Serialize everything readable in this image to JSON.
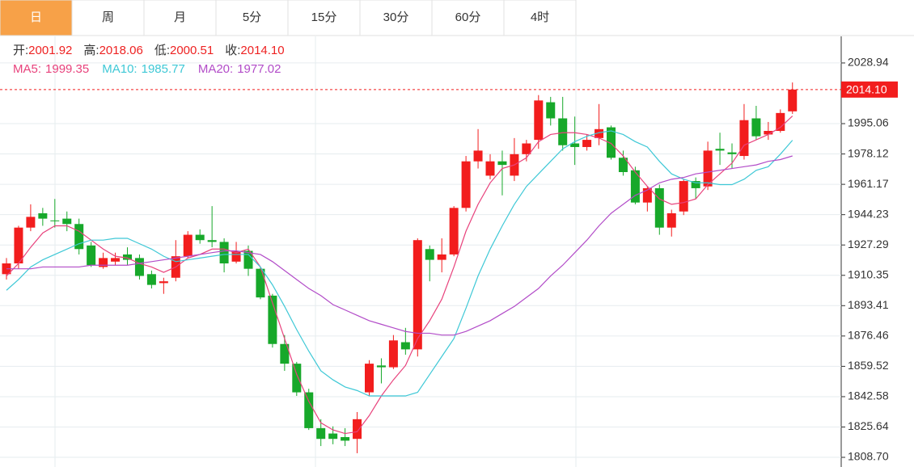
{
  "chart_data": {
    "type": "candlestick",
    "tabs": [
      "日",
      "周",
      "月",
      "5分",
      "15分",
      "30分",
      "60分",
      "4时"
    ],
    "active_tab": 0,
    "ohlc_info": [
      {
        "label": "开:",
        "value": "2001.92"
      },
      {
        "label": "高:",
        "value": "2018.06"
      },
      {
        "label": "低:",
        "value": "2000.51"
      },
      {
        "label": "收:",
        "value": "2014.10"
      }
    ],
    "up_color": "#f21d1d",
    "down_color": "#17a82a",
    "open": [
      1911,
      1917,
      1937,
      1945,
      1941,
      1942,
      1939,
      1927,
      1915,
      1918,
      1922,
      1920,
      1911,
      1906,
      1909,
      1921,
      1933,
      1930,
      1929,
      1918,
      1924,
      1914,
      1899,
      1872,
      1861,
      1845,
      1825,
      1822,
      1820,
      1819,
      1845,
      1860,
      1859,
      1873,
      1869,
      1925,
      1919,
      1922,
      1948,
      1974,
      1966,
      1974,
      1966,
      1978,
      1986,
      2007,
      1998,
      1984,
      1982,
      1987,
      1993,
      1976,
      1969,
      1951,
      1959,
      1937,
      1946,
      1963,
      1960,
      1981,
      1979,
      1977,
      1998,
      1989,
      1991,
      2001.92
    ],
    "high": [
      1920,
      1938,
      1950,
      1948,
      1953,
      1946,
      1942,
      1929,
      1923,
      1923,
      1926,
      1922,
      1913,
      1909,
      1930,
      1935,
      1936,
      1949,
      1931,
      1929,
      1927,
      1915,
      1900,
      1877,
      1862,
      1847,
      1830,
      1826,
      1825,
      1834,
      1863,
      1864,
      1877,
      1881,
      1931,
      1927,
      1931,
      1949,
      1977,
      1992,
      1978,
      1980,
      1987,
      1986,
      2011,
      2010,
      2010,
      1999,
      1989,
      2006,
      1994,
      1980,
      1971,
      1960,
      1961,
      1947,
      1964,
      1965,
      1985,
      1990,
      1984,
      2006,
      2005,
      1996,
      2003,
      2018.06
    ],
    "low": [
      1908,
      1914,
      1935,
      1938,
      1937,
      1935,
      1922,
      1915,
      1914,
      1916,
      1916,
      1908,
      1903,
      1900,
      1907,
      1920,
      1928,
      1926,
      1912,
      1917,
      1910,
      1897,
      1870,
      1857,
      1843,
      1824,
      1815,
      1816,
      1815,
      1811,
      1843,
      1850,
      1858,
      1866,
      1865,
      1907,
      1912,
      1921,
      1946,
      1970,
      1964,
      1955,
      1963,
      1974,
      1981,
      1994,
      1980,
      1972,
      1980,
      1983,
      1975,
      1966,
      1950,
      1946,
      1933,
      1932,
      1944,
      1953,
      1958,
      1972,
      1970,
      1975,
      1986,
      1986,
      1990,
      2000.51
    ],
    "close": [
      1917,
      1937,
      1943,
      1942,
      1941,
      1939,
      1925,
      1916,
      1920,
      1920,
      1919,
      1910,
      1905,
      1907,
      1921,
      1933,
      1930,
      1929,
      1917,
      1924,
      1914,
      1898,
      1872,
      1861,
      1845,
      1825,
      1819,
      1819,
      1818,
      1830,
      1861,
      1859,
      1874,
      1869,
      1930,
      1919,
      1922,
      1948,
      1974,
      1980,
      1974,
      1972,
      1978,
      1984,
      2008,
      1998,
      1983,
      1982,
      1986,
      1992,
      1976,
      1968,
      1951,
      1959,
      1937,
      1945,
      1963,
      1959,
      1980,
      1980,
      1978,
      1997,
      1988,
      1991,
      2001,
      2014.1
    ],
    "ma": [
      {
        "name": "MA5:",
        "color": "#e8427c",
        "last_label": "1999.35",
        "values": [
          1910,
          1917,
          1926,
          1934,
          1938,
          1938,
          1935,
          1930,
          1925,
          1921,
          1920,
          1917,
          1915,
          1912,
          1915,
          1920,
          1922,
          1925,
          1925,
          1923,
          1925,
          1915,
          1895,
          1875,
          1855,
          1840,
          1828,
          1824,
          1822,
          1823,
          1832,
          1843,
          1852,
          1860,
          1875,
          1885,
          1897,
          1915,
          1935,
          1950,
          1962,
          1970,
          1972,
          1976,
          1985,
          1989,
          1990,
          1990,
          1989,
          1987,
          1984,
          1977,
          1968,
          1960,
          1953,
          1950,
          1951,
          1953,
          1961,
          1967,
          1973,
          1983,
          1986,
          1989,
          1993,
          1999.35
        ]
      },
      {
        "name": "MA10:",
        "color": "#3ec8d6",
        "last_label": "1985.77",
        "values": [
          1902,
          1908,
          1915,
          1919,
          1922,
          1925,
          1928,
          1930,
          1930,
          1931,
          1931,
          1928,
          1925,
          1921,
          1918,
          1919,
          1920,
          1921,
          1922,
          1922,
          1922,
          1915,
          1905,
          1893,
          1880,
          1868,
          1857,
          1852,
          1848,
          1846,
          1843,
          1843,
          1843,
          1843,
          1845,
          1855,
          1865,
          1875,
          1892,
          1910,
          1925,
          1938,
          1950,
          1960,
          1967,
          1974,
          1981,
          1985,
          1988,
          1990,
          1991,
          1989,
          1985,
          1982,
          1974,
          1967,
          1964,
          1962,
          1962,
          1961,
          1961,
          1964,
          1969,
          1971,
          1978,
          1985.77
        ]
      },
      {
        "name": "MA20:",
        "color": "#b24cc8",
        "last_label": "1977.02",
        "values": [
          1914,
          1914,
          1914,
          1915,
          1915,
          1915,
          1915,
          1916,
          1916,
          1916,
          1916,
          1917,
          1918,
          1919,
          1920,
          1921,
          1922,
          1923,
          1924,
          1924,
          1923,
          1922,
          1918,
          1913,
          1908,
          1903,
          1899,
          1894,
          1891,
          1888,
          1885,
          1883,
          1881,
          1879,
          1878,
          1878,
          1877,
          1877,
          1879,
          1882,
          1885,
          1889,
          1893,
          1898,
          1903,
          1910,
          1916,
          1923,
          1930,
          1938,
          1945,
          1950,
          1955,
          1958,
          1962,
          1964,
          1965,
          1967,
          1968,
          1969,
          1970,
          1971,
          1972,
          1974,
          1975,
          1977.02
        ]
      }
    ],
    "current_price": {
      "value": 2014.1,
      "label": "2014.10"
    },
    "ylim": [
      1803.3,
      2043.8
    ],
    "yticks": [
      2028.94,
      1995.06,
      1978.12,
      1961.17,
      1944.23,
      1927.29,
      1910.35,
      1893.41,
      1876.46,
      1859.52,
      1842.58,
      1825.64,
      {
        "value": 1808.7,
        "label": "1808.70"
      }
    ],
    "grid": true
  }
}
